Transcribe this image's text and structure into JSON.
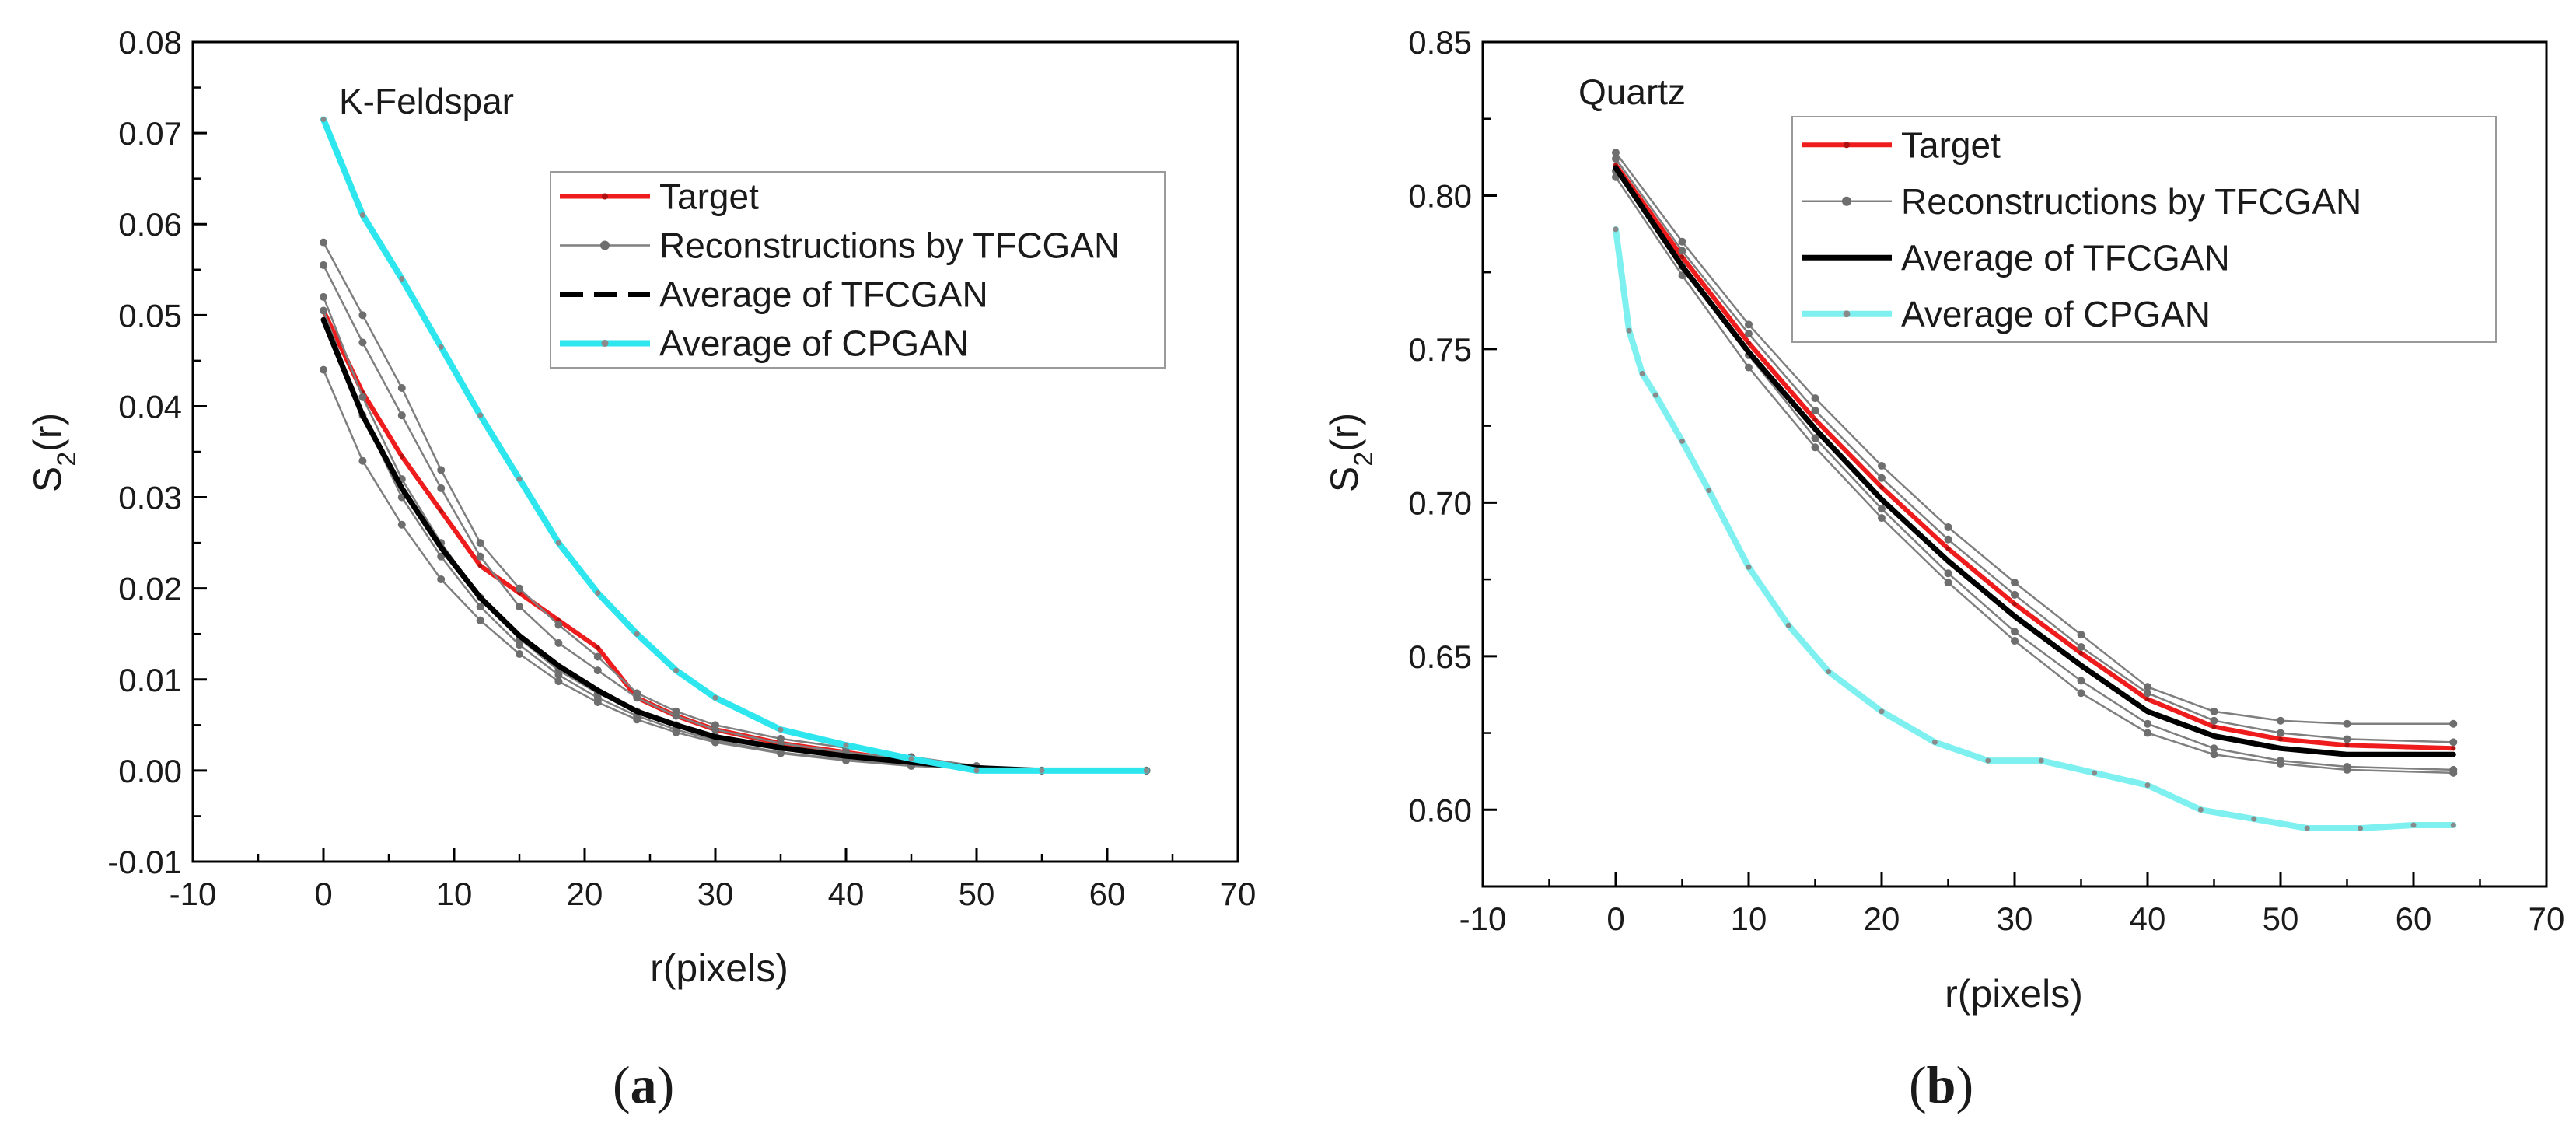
{
  "chart_data": [
    {
      "type": "line",
      "panel_label": "a",
      "annotation": "K-Feldspar",
      "xlabel": "r(pixels)",
      "ylabel_base": "S",
      "ylabel_sub": "2",
      "ylabel_tail": "(r)",
      "xlim": [
        -10,
        70
      ],
      "ylim": [
        -0.01,
        0.08
      ],
      "xticks": [
        -10,
        0,
        10,
        20,
        30,
        40,
        50,
        60,
        70
      ],
      "xtick_labels": [
        "-10",
        "0",
        "10",
        "20",
        "30",
        "40",
        "50",
        "60",
        "70"
      ],
      "yticks": [
        -0.01,
        0,
        0.01,
        0.02,
        0.03,
        0.04,
        0.05,
        0.06,
        0.07,
        0.08
      ],
      "ytick_labels": [
        "-0.01",
        "0.00",
        "0.01",
        "0.02",
        "0.03",
        "0.04",
        "0.05",
        "0.06",
        "0.07",
        "0.08"
      ],
      "legend": [
        "Target",
        "Reconstructions by TFCGAN",
        "Average of TFCGAN",
        "Average of CPGAN"
      ],
      "series": [
        {
          "name": "Target",
          "color": "#ee1c1c",
          "x": [
            0,
            3,
            6,
            9,
            12,
            15,
            18,
            21,
            24,
            27,
            30,
            35,
            40,
            45,
            50,
            55,
            63
          ],
          "values": [
            0.0505,
            0.0415,
            0.0345,
            0.0285,
            0.0225,
            0.0195,
            0.0165,
            0.0135,
            0.008,
            0.006,
            0.0045,
            0.003,
            0.002,
            0.001,
            0.0002,
            0.0,
            0.0
          ]
        },
        {
          "name": "Reconstructions by TFCGAN",
          "color": "#7f7f7f",
          "x": [
            0,
            3,
            6,
            9,
            12,
            15,
            18,
            21,
            24,
            27,
            30,
            35,
            40,
            45,
            50,
            55,
            63
          ],
          "values": [
            0.058,
            0.05,
            0.042,
            0.033,
            0.025,
            0.02,
            0.016,
            0.0125,
            0.0085,
            0.0065,
            0.005,
            0.0035,
            0.0025,
            0.0015,
            0.0005,
            0.0,
            0.0
          ]
        },
        {
          "name": "Reconstructions by TFCGAN",
          "color": "#7f7f7f",
          "x": [
            0,
            3,
            6,
            9,
            12,
            15,
            18,
            21,
            24,
            27,
            30,
            35,
            40,
            45,
            50,
            55,
            63
          ],
          "values": [
            0.0555,
            0.047,
            0.039,
            0.031,
            0.0235,
            0.018,
            0.014,
            0.011,
            0.008,
            0.006,
            0.0045,
            0.003,
            0.002,
            0.0012,
            0.0004,
            0.0,
            0.0
          ]
        },
        {
          "name": "Reconstructions by TFCGAN",
          "color": "#7f7f7f",
          "x": [
            0,
            3,
            6,
            9,
            12,
            15,
            18,
            21,
            24,
            27,
            30,
            35,
            40,
            45,
            50,
            55,
            63
          ],
          "values": [
            0.052,
            0.041,
            0.032,
            0.025,
            0.019,
            0.0145,
            0.011,
            0.0085,
            0.0065,
            0.005,
            0.0038,
            0.0025,
            0.0015,
            0.0008,
            0.0003,
            0.0,
            0.0
          ]
        },
        {
          "name": "Reconstructions by TFCGAN",
          "color": "#7f7f7f",
          "x": [
            0,
            3,
            6,
            9,
            12,
            15,
            18,
            21,
            24,
            27,
            30,
            35,
            40,
            45,
            50,
            55,
            63
          ],
          "values": [
            0.0505,
            0.039,
            0.03,
            0.0235,
            0.018,
            0.0138,
            0.0105,
            0.008,
            0.006,
            0.0045,
            0.0033,
            0.002,
            0.0012,
            0.0006,
            0.0002,
            0.0,
            0.0
          ]
        },
        {
          "name": "Reconstructions by TFCGAN",
          "color": "#7f7f7f",
          "x": [
            0,
            3,
            6,
            9,
            12,
            15,
            18,
            21,
            24,
            27,
            30,
            35,
            40,
            45,
            50,
            55,
            63
          ],
          "values": [
            0.044,
            0.034,
            0.027,
            0.021,
            0.0165,
            0.0128,
            0.0098,
            0.0075,
            0.0056,
            0.0042,
            0.0031,
            0.0019,
            0.0011,
            0.0005,
            0.0002,
            0.0,
            0.0
          ]
        },
        {
          "name": "Average of TFCGAN",
          "color": "#000000",
          "x": [
            0,
            3,
            6,
            9,
            12,
            15,
            18,
            21,
            24,
            27,
            30,
            35,
            40,
            45,
            50,
            55,
            63
          ],
          "values": [
            0.0495,
            0.039,
            0.031,
            0.0245,
            0.019,
            0.0148,
            0.0115,
            0.0088,
            0.0065,
            0.005,
            0.0037,
            0.0025,
            0.0016,
            0.0009,
            0.0003,
            0.0,
            0.0
          ]
        },
        {
          "name": "Average of CPGAN",
          "color": "#2ee6ee",
          "x": [
            0,
            3,
            6,
            9,
            12,
            15,
            18,
            21,
            24,
            27,
            30,
            35,
            40,
            45,
            50,
            55,
            63
          ],
          "values": [
            0.0715,
            0.061,
            0.054,
            0.0465,
            0.039,
            0.032,
            0.025,
            0.0195,
            0.015,
            0.011,
            0.008,
            0.0045,
            0.0028,
            0.0013,
            0.0,
            0.0,
            0.0
          ]
        }
      ]
    },
    {
      "type": "line",
      "panel_label": "b",
      "annotation": "Quartz",
      "xlabel": "r(pixels)",
      "ylabel_base": "S",
      "ylabel_sub": "2",
      "ylabel_tail": "(r)",
      "xlim": [
        -10,
        70
      ],
      "ylim": [
        0.575,
        0.85
      ],
      "xticks": [
        -10,
        0,
        10,
        20,
        30,
        40,
        50,
        60,
        70
      ],
      "xtick_labels": [
        "-10",
        "0",
        "10",
        "20",
        "30",
        "40",
        "50",
        "60",
        "70"
      ],
      "yticks": [
        0.6,
        0.65,
        0.7,
        0.75,
        0.8,
        0.85
      ],
      "ytick_labels": [
        "0.60",
        "0.65",
        "0.70",
        "0.75",
        "0.80",
        "0.85"
      ],
      "legend": [
        "Target",
        "Reconstructions by TFCGAN",
        "Average of TFCGAN",
        "Average of CPGAN"
      ],
      "series": [
        {
          "name": "Target",
          "color": "#ee1c1c",
          "x": [
            0,
            5,
            10,
            15,
            20,
            25,
            30,
            35,
            40,
            45,
            50,
            55,
            63
          ],
          "values": [
            0.81,
            0.78,
            0.752,
            0.727,
            0.705,
            0.685,
            0.667,
            0.651,
            0.636,
            0.627,
            0.623,
            0.621,
            0.62
          ]
        },
        {
          "name": "Reconstructions by TFCGAN",
          "color": "#7f7f7f",
          "x": [
            0,
            5,
            10,
            15,
            20,
            25,
            30,
            35,
            40,
            45,
            50,
            55,
            63
          ],
          "values": [
            0.814,
            0.785,
            0.758,
            0.734,
            0.712,
            0.692,
            0.674,
            0.657,
            0.64,
            0.632,
            0.629,
            0.628,
            0.628
          ]
        },
        {
          "name": "Reconstructions by TFCGAN",
          "color": "#7f7f7f",
          "x": [
            0,
            5,
            10,
            15,
            20,
            25,
            30,
            35,
            40,
            45,
            50,
            55,
            63
          ],
          "values": [
            0.808,
            0.777,
            0.748,
            0.721,
            0.698,
            0.677,
            0.658,
            0.642,
            0.628,
            0.62,
            0.616,
            0.614,
            0.613
          ]
        },
        {
          "name": "Reconstructions by TFCGAN",
          "color": "#7f7f7f",
          "x": [
            0,
            5,
            10,
            15,
            20,
            25,
            30,
            35,
            40,
            45,
            50,
            55,
            63
          ],
          "values": [
            0.806,
            0.774,
            0.744,
            0.718,
            0.695,
            0.674,
            0.655,
            0.638,
            0.625,
            0.618,
            0.615,
            0.613,
            0.612
          ]
        },
        {
          "name": "Reconstructions by TFCGAN",
          "color": "#7f7f7f",
          "x": [
            0,
            5,
            10,
            15,
            20,
            25,
            30,
            35,
            40,
            45,
            50,
            55,
            63
          ],
          "values": [
            0.812,
            0.782,
            0.755,
            0.73,
            0.708,
            0.688,
            0.67,
            0.653,
            0.638,
            0.629,
            0.625,
            0.623,
            0.622
          ]
        },
        {
          "name": "Average of TFCGAN",
          "color": "#000000",
          "x": [
            0,
            5,
            10,
            15,
            20,
            25,
            30,
            35,
            40,
            45,
            50,
            55,
            63
          ],
          "values": [
            0.809,
            0.777,
            0.749,
            0.724,
            0.701,
            0.681,
            0.663,
            0.647,
            0.632,
            0.624,
            0.62,
            0.618,
            0.618
          ]
        },
        {
          "name": "Average of CPGAN",
          "color": "#7ff0f0",
          "x": [
            0,
            1,
            2,
            3,
            5,
            7,
            10,
            13,
            16,
            20,
            24,
            28,
            32,
            36,
            40,
            44,
            48,
            52,
            56,
            60,
            63
          ],
          "values": [
            0.789,
            0.756,
            0.742,
            0.735,
            0.72,
            0.704,
            0.679,
            0.66,
            0.645,
            0.632,
            0.622,
            0.616,
            0.616,
            0.612,
            0.608,
            0.6,
            0.597,
            0.594,
            0.594,
            0.595,
            0.595
          ]
        }
      ]
    }
  ]
}
